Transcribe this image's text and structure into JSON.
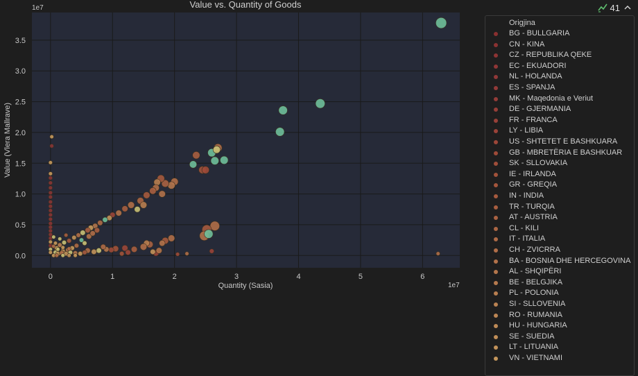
{
  "badge": {
    "count": "41",
    "chart_icon": "trend-check-icon",
    "collapse_icon": "chevron-up-icon"
  },
  "colors": {
    "background": "#1e1e1e",
    "plot_bg": "#262a38",
    "grid": "#1a1a1a",
    "green": "#6fbf9a",
    "red": "#8a3535",
    "brown": "#a86b3a",
    "tan": "#c89a5c",
    "olive": "#c9c177"
  },
  "chart_data": {
    "type": "scatter",
    "title": "Value vs. Quantity of Goods",
    "xlabel": "Quantity (Sasia)",
    "ylabel": "Value (Vlera Mallrave)",
    "x_exponent": "1e7",
    "y_exponent": "1e7",
    "xlim": [
      -0.3,
      6.6
    ],
    "ylim": [
      -0.2,
      3.95
    ],
    "x_ticks": [
      0,
      1,
      2,
      3,
      4,
      5,
      6
    ],
    "y_ticks": [
      0.0,
      0.5,
      1.0,
      1.5,
      2.0,
      2.5,
      3.0,
      3.5
    ],
    "grid": true,
    "legend_title": "Origjina",
    "legend": [
      {
        "label": "BG - BULLGARIA",
        "color": "#8a3030"
      },
      {
        "label": "CN - KINA",
        "color": "#8b3232"
      },
      {
        "label": "CZ - REPUBLIKA QEKE",
        "color": "#8d3434"
      },
      {
        "label": "EC - EKUADORI",
        "color": "#8f3636"
      },
      {
        "label": "NL - HOLANDA",
        "color": "#903838"
      },
      {
        "label": "ES - SPANJA",
        "color": "#923a38"
      },
      {
        "label": "MK - Maqedonia e Veriut",
        "color": "#943c38"
      },
      {
        "label": "DE - GJERMANIA",
        "color": "#963e38"
      },
      {
        "label": "FR - FRANCA",
        "color": "#984038"
      },
      {
        "label": "LY - LIBIA",
        "color": "#9a4238"
      },
      {
        "label": "US - SHTETET E BASHKUARA",
        "color": "#9c4638"
      },
      {
        "label": "GB - MBRETËRIA E BASHKUAR",
        "color": "#9e4a38"
      },
      {
        "label": "SK - SLLOVAKIA",
        "color": "#a04e3a"
      },
      {
        "label": "IE - IRLANDA",
        "color": "#a2523a"
      },
      {
        "label": "GR - GREQIA",
        "color": "#a4563c"
      },
      {
        "label": "IN - INDIA",
        "color": "#a65a3e"
      },
      {
        "label": "TR - TURQIA",
        "color": "#a85e40"
      },
      {
        "label": "AT - AUSTRIA",
        "color": "#aa6242"
      },
      {
        "label": "CL - KILI",
        "color": "#ac6644"
      },
      {
        "label": "IT - ITALIA",
        "color": "#ae6a46"
      },
      {
        "label": "CH - ZVICRRA",
        "color": "#b06e48"
      },
      {
        "label": "BA - BOSNIA DHE HERCEGOVINA",
        "color": "#b2724a"
      },
      {
        "label": "AL - SHQIPËRI",
        "color": "#b4764c"
      },
      {
        "label": "BE - BELGJIKA",
        "color": "#b67a4e"
      },
      {
        "label": "PL - POLONIA",
        "color": "#b87e50"
      },
      {
        "label": "SI - SLLOVENIA",
        "color": "#ba8252"
      },
      {
        "label": "RO - RUMANIA",
        "color": "#bc8654"
      },
      {
        "label": "HU - HUNGARIA",
        "color": "#be8a56"
      },
      {
        "label": "SE - SUEDIA",
        "color": "#c08e58"
      },
      {
        "label": "LT - LITUANIA",
        "color": "#c2925a"
      },
      {
        "label": "VN - VIETNAMI",
        "color": "#c4965c"
      }
    ],
    "points": [
      {
        "x": 6.3,
        "y": 3.78,
        "s": 14,
        "c": "#6fbf9a"
      },
      {
        "x": 4.35,
        "y": 2.47,
        "s": 12,
        "c": "#6fbf9a"
      },
      {
        "x": 3.75,
        "y": 2.36,
        "s": 11,
        "c": "#6fbf9a"
      },
      {
        "x": 3.7,
        "y": 2.01,
        "s": 11,
        "c": "#6fbf9a"
      },
      {
        "x": 2.8,
        "y": 1.55,
        "s": 10,
        "c": "#6fbf9a"
      },
      {
        "x": 2.65,
        "y": 1.54,
        "s": 10,
        "c": "#6fbf9a"
      },
      {
        "x": 2.6,
        "y": 1.67,
        "s": 10,
        "c": "#6fbf9a"
      },
      {
        "x": 2.7,
        "y": 1.75,
        "s": 10,
        "c": "#b06e48"
      },
      {
        "x": 2.68,
        "y": 1.72,
        "s": 9,
        "c": "#c9c177"
      },
      {
        "x": 2.3,
        "y": 1.48,
        "s": 9,
        "c": "#6fbf9a"
      },
      {
        "x": 2.35,
        "y": 1.63,
        "s": 9,
        "c": "#a85e40"
      },
      {
        "x": 2.45,
        "y": 1.39,
        "s": 9,
        "c": "#a2523a"
      },
      {
        "x": 2.5,
        "y": 1.39,
        "s": 9,
        "c": "#9e4a38"
      },
      {
        "x": 2.65,
        "y": 0.48,
        "s": 12,
        "c": "#b06e48"
      },
      {
        "x": 2.52,
        "y": 0.42,
        "s": 12,
        "c": "#a65a3e"
      },
      {
        "x": 2.48,
        "y": 0.32,
        "s": 12,
        "c": "#b2724a"
      },
      {
        "x": 2.55,
        "y": 0.35,
        "s": 11,
        "c": "#6fbf9a"
      },
      {
        "x": 2.6,
        "y": 0.07,
        "s": 5,
        "c": "#9a4238"
      },
      {
        "x": 2.0,
        "y": 1.2,
        "s": 9,
        "c": "#b06e48"
      },
      {
        "x": 1.95,
        "y": 1.14,
        "s": 9,
        "c": "#b4764c"
      },
      {
        "x": 1.85,
        "y": 1.17,
        "s": 9,
        "c": "#aa6242"
      },
      {
        "x": 1.78,
        "y": 1.25,
        "s": 9,
        "c": "#a65a3e"
      },
      {
        "x": 1.72,
        "y": 1.19,
        "s": 8,
        "c": "#b87e50"
      },
      {
        "x": 1.7,
        "y": 1.1,
        "s": 8,
        "c": "#b06e48"
      },
      {
        "x": 1.65,
        "y": 1.05,
        "s": 8,
        "c": "#a85e40"
      },
      {
        "x": 1.8,
        "y": 1.0,
        "s": 8,
        "c": "#b2724a"
      },
      {
        "x": 1.55,
        "y": 0.98,
        "s": 8,
        "c": "#a65a3e"
      },
      {
        "x": 1.45,
        "y": 0.89,
        "s": 8,
        "c": "#ac6644"
      },
      {
        "x": 1.3,
        "y": 0.82,
        "s": 8,
        "c": "#b06e48"
      },
      {
        "x": 1.5,
        "y": 0.82,
        "s": 8,
        "c": "#b87e50"
      },
      {
        "x": 1.2,
        "y": 0.76,
        "s": 7,
        "c": "#a85e40"
      },
      {
        "x": 1.1,
        "y": 0.69,
        "s": 7,
        "c": "#b2724a"
      },
      {
        "x": 1.4,
        "y": 0.75,
        "s": 7,
        "c": "#c9c177"
      },
      {
        "x": 1.0,
        "y": 0.66,
        "s": 6,
        "c": "#9c4638"
      },
      {
        "x": 0.95,
        "y": 0.61,
        "s": 6,
        "c": "#c2925a"
      },
      {
        "x": 0.88,
        "y": 0.58,
        "s": 6,
        "c": "#6fbf9a"
      },
      {
        "x": 0.8,
        "y": 0.53,
        "s": 6,
        "c": "#ae6a46"
      },
      {
        "x": 0.72,
        "y": 0.48,
        "s": 6,
        "c": "#b4764c"
      },
      {
        "x": 0.65,
        "y": 0.45,
        "s": 6,
        "c": "#c89a5c"
      },
      {
        "x": 0.6,
        "y": 0.41,
        "s": 6,
        "c": "#a85e40"
      },
      {
        "x": 0.52,
        "y": 0.37,
        "s": 6,
        "c": "#c9c177"
      },
      {
        "x": 0.45,
        "y": 0.33,
        "s": 5,
        "c": "#b06e48"
      },
      {
        "x": 0.38,
        "y": 0.29,
        "s": 5,
        "c": "#c2925a"
      },
      {
        "x": 0.3,
        "y": 0.24,
        "s": 5,
        "c": "#a65a3e"
      },
      {
        "x": 0.22,
        "y": 0.21,
        "s": 5,
        "c": "#c9c177"
      },
      {
        "x": 0.15,
        "y": 0.17,
        "s": 5,
        "c": "#b87e50"
      },
      {
        "x": 0.1,
        "y": 0.12,
        "s": 5,
        "c": "#c89a5c"
      },
      {
        "x": 0.5,
        "y": 0.25,
        "s": 5,
        "c": "#6fbf9a"
      },
      {
        "x": 0.55,
        "y": 0.2,
        "s": 5,
        "c": "#c9c177"
      },
      {
        "x": 0.62,
        "y": 0.31,
        "s": 6,
        "c": "#b2724a"
      },
      {
        "x": 0.42,
        "y": 0.16,
        "s": 5,
        "c": "#ae6a46"
      },
      {
        "x": 0.35,
        "y": 0.12,
        "s": 5,
        "c": "#c89a5c"
      },
      {
        "x": 0.28,
        "y": 0.09,
        "s": 5,
        "c": "#b4764c"
      },
      {
        "x": 0.2,
        "y": 0.07,
        "s": 5,
        "c": "#c2925a"
      },
      {
        "x": 0.68,
        "y": 0.36,
        "s": 6,
        "c": "#b06e48"
      },
      {
        "x": 0.75,
        "y": 0.41,
        "s": 6,
        "c": "#a85e40"
      },
      {
        "x": 1.95,
        "y": 0.28,
        "s": 8,
        "c": "#b06e48"
      },
      {
        "x": 1.85,
        "y": 0.24,
        "s": 8,
        "c": "#a65a3e"
      },
      {
        "x": 1.8,
        "y": 0.2,
        "s": 7,
        "c": "#b2724a"
      },
      {
        "x": 1.6,
        "y": 0.18,
        "s": 8,
        "c": "#aa6242"
      },
      {
        "x": 1.55,
        "y": 0.2,
        "s": 7,
        "c": "#b87e50"
      },
      {
        "x": 1.5,
        "y": 0.14,
        "s": 8,
        "c": "#b06e48"
      },
      {
        "x": 1.35,
        "y": 0.1,
        "s": 7,
        "c": "#a85e40"
      },
      {
        "x": 1.2,
        "y": 0.12,
        "s": 7,
        "c": "#9c4638"
      },
      {
        "x": 1.05,
        "y": 0.11,
        "s": 7,
        "c": "#a2523a"
      },
      {
        "x": 0.98,
        "y": 0.09,
        "s": 6,
        "c": "#9e4a38"
      },
      {
        "x": 0.9,
        "y": 0.1,
        "s": 6,
        "c": "#b4764c"
      },
      {
        "x": 0.85,
        "y": 0.14,
        "s": 6,
        "c": "#ae6a46"
      },
      {
        "x": 0.78,
        "y": 0.08,
        "s": 6,
        "c": "#c9c177"
      },
      {
        "x": 0.7,
        "y": 0.06,
        "s": 6,
        "c": "#c2925a"
      },
      {
        "x": 0.6,
        "y": 0.08,
        "s": 6,
        "c": "#b06e48"
      },
      {
        "x": 1.7,
        "y": 0.04,
        "s": 7,
        "c": "#9a4238"
      },
      {
        "x": 1.75,
        "y": 0.08,
        "s": 7,
        "c": "#b2724a"
      },
      {
        "x": 1.65,
        "y": 0.06,
        "s": 6,
        "c": "#c2925a"
      },
      {
        "x": 1.25,
        "y": 0.05,
        "s": 6,
        "c": "#9c4638"
      },
      {
        "x": 1.15,
        "y": 0.03,
        "s": 5,
        "c": "#a2523a"
      },
      {
        "x": 2.2,
        "y": 0.03,
        "s": 4,
        "c": "#b06e48"
      },
      {
        "x": 2.05,
        "y": 0.02,
        "s": 4,
        "c": "#9e4a38"
      },
      {
        "x": 6.25,
        "y": 0.03,
        "s": 4,
        "c": "#b06e48"
      },
      {
        "x": 0.02,
        "y": 1.93,
        "s": 4,
        "c": "#c89a5c"
      },
      {
        "x": 0.02,
        "y": 1.78,
        "s": 4,
        "c": "#8a3535"
      },
      {
        "x": 0.0,
        "y": 1.51,
        "s": 4,
        "c": "#c89a5c"
      },
      {
        "x": 0.0,
        "y": 1.33,
        "s": 4,
        "c": "#c89a5c"
      },
      {
        "x": 0.0,
        "y": 1.26,
        "s": 4,
        "c": "#8a3535"
      },
      {
        "x": 0.0,
        "y": 1.18,
        "s": 4,
        "c": "#8a3535"
      },
      {
        "x": 0.0,
        "y": 1.1,
        "s": 4,
        "c": "#8a3535"
      },
      {
        "x": 0.0,
        "y": 1.02,
        "s": 4,
        "c": "#8a3535"
      },
      {
        "x": 0.0,
        "y": 0.95,
        "s": 4,
        "c": "#8a3535"
      },
      {
        "x": 0.0,
        "y": 0.87,
        "s": 4,
        "c": "#8a3535"
      },
      {
        "x": 0.0,
        "y": 0.8,
        "s": 4,
        "c": "#8a3535"
      },
      {
        "x": 0.0,
        "y": 0.73,
        "s": 4,
        "c": "#8a3535"
      },
      {
        "x": 0.0,
        "y": 0.66,
        "s": 4,
        "c": "#8a3535"
      },
      {
        "x": 0.0,
        "y": 0.59,
        "s": 4,
        "c": "#8a3535"
      },
      {
        "x": 0.0,
        "y": 0.52,
        "s": 4,
        "c": "#8a3535"
      },
      {
        "x": 0.0,
        "y": 0.46,
        "s": 4,
        "c": "#8a3535"
      },
      {
        "x": 0.0,
        "y": 0.4,
        "s": 4,
        "c": "#8a3535"
      },
      {
        "x": 0.0,
        "y": 0.34,
        "s": 4,
        "c": "#8a3535"
      },
      {
        "x": 0.0,
        "y": 0.28,
        "s": 4,
        "c": "#8a3535"
      },
      {
        "x": 0.0,
        "y": 0.22,
        "s": 4,
        "c": "#c89a5c"
      },
      {
        "x": 0.0,
        "y": 0.16,
        "s": 4,
        "c": "#8a3535"
      },
      {
        "x": 0.0,
        "y": 0.1,
        "s": 4,
        "c": "#c9c177"
      },
      {
        "x": 0.0,
        "y": 0.05,
        "s": 4,
        "c": "#c89a5c"
      },
      {
        "x": 0.05,
        "y": 0.3,
        "s": 4,
        "c": "#c9c177"
      },
      {
        "x": 0.05,
        "y": 0.15,
        "s": 4,
        "c": "#b06e48"
      },
      {
        "x": 0.08,
        "y": 0.05,
        "s": 5,
        "c": "#c9c177"
      },
      {
        "x": 0.12,
        "y": 0.03,
        "s": 5,
        "c": "#c89a5c"
      },
      {
        "x": 0.18,
        "y": 0.04,
        "s": 5,
        "c": "#b06e48"
      },
      {
        "x": 0.25,
        "y": 0.03,
        "s": 5,
        "c": "#c2925a"
      },
      {
        "x": 0.32,
        "y": 0.05,
        "s": 5,
        "c": "#c9c177"
      },
      {
        "x": 0.4,
        "y": 0.04,
        "s": 5,
        "c": "#b4764c"
      },
      {
        "x": 0.48,
        "y": 0.03,
        "s": 5,
        "c": "#c89a5c"
      },
      {
        "x": 0.55,
        "y": 0.05,
        "s": 5,
        "c": "#a65a3e"
      },
      {
        "x": 0.12,
        "y": 0.1,
        "s": 4,
        "c": "#c9c177"
      },
      {
        "x": 0.2,
        "y": 0.13,
        "s": 4,
        "c": "#c89a5c"
      },
      {
        "x": 0.3,
        "y": 0.11,
        "s": 4,
        "c": "#b06e48"
      },
      {
        "x": 0.08,
        "y": 0.2,
        "s": 4,
        "c": "#c89a5c"
      },
      {
        "x": 0.15,
        "y": 0.27,
        "s": 4,
        "c": "#c9c177"
      },
      {
        "x": 0.25,
        "y": 0.33,
        "s": 4,
        "c": "#a85e40"
      },
      {
        "x": 0.05,
        "y": 0.0,
        "s": 4,
        "c": "#c89a5c"
      },
      {
        "x": 0.1,
        "y": 0.0,
        "s": 4,
        "c": "#b06e48"
      },
      {
        "x": 0.2,
        "y": 0.0,
        "s": 4,
        "c": "#c9c177"
      },
      {
        "x": 0.3,
        "y": 0.0,
        "s": 4,
        "c": "#c2925a"
      },
      {
        "x": 0.4,
        "y": 0.0,
        "s": 4,
        "c": "#c89a5c"
      }
    ]
  }
}
